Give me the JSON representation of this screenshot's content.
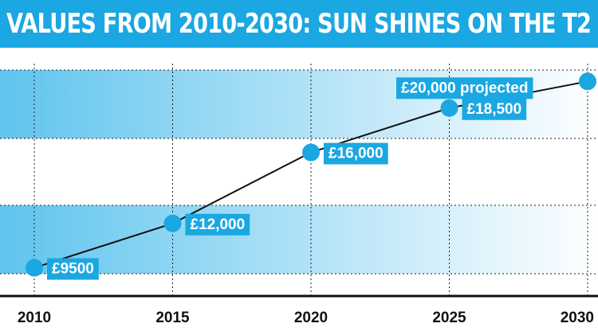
{
  "title": "VALUES FROM 2010-2030: SUN SHINES ON THE T2",
  "colors": {
    "accent": "#1aa7e2",
    "line": "#111111",
    "band": "#6fcbef"
  },
  "chart_data": {
    "type": "line",
    "title": "VALUES FROM 2010-2030: SUN SHINES ON THE T2",
    "xlabel": "",
    "ylabel": "",
    "x": [
      2010,
      2015,
      2020,
      2025,
      2030
    ],
    "xlim": [
      2010,
      2030
    ],
    "ylim": [
      8000,
      21000
    ],
    "grid": true,
    "series": [
      {
        "values": [
          9500,
          12000,
          16000,
          18500,
          20000
        ]
      }
    ],
    "data_labels": [
      "£9500",
      "£12,000",
      "£16,000",
      "£18,500",
      "£20,000 projected"
    ],
    "x_tick_labels": [
      "2010",
      "2015",
      "2020",
      "2025",
      "2030"
    ]
  }
}
